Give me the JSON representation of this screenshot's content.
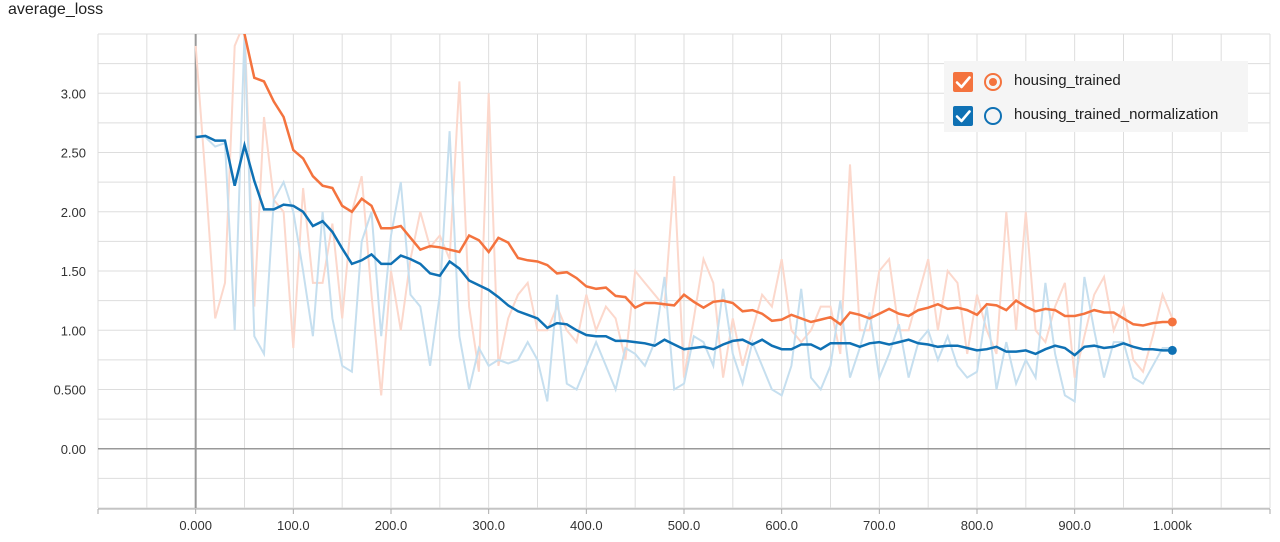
{
  "chart_data": {
    "type": "line",
    "title": "average_loss",
    "xlim": [
      -100,
      1100
    ],
    "ylim": [
      -0.5,
      3.5
    ],
    "grid": true,
    "legend_position": "top-right",
    "x_ticks": [
      {
        "value": 0,
        "label": "0.000"
      },
      {
        "value": 100,
        "label": "100.0"
      },
      {
        "value": 200,
        "label": "200.0"
      },
      {
        "value": 300,
        "label": "300.0"
      },
      {
        "value": 400,
        "label": "400.0"
      },
      {
        "value": 500,
        "label": "500.0"
      },
      {
        "value": 600,
        "label": "600.0"
      },
      {
        "value": 700,
        "label": "700.0"
      },
      {
        "value": 800,
        "label": "800.0"
      },
      {
        "value": 900,
        "label": "900.0"
      },
      {
        "value": 1000,
        "label": "1.000k"
      }
    ],
    "y_ticks": [
      {
        "value": 0,
        "label": "0.00"
      },
      {
        "value": 0.5,
        "label": "0.500"
      },
      {
        "value": 1.0,
        "label": "1.00"
      },
      {
        "value": 1.5,
        "label": "1.50"
      },
      {
        "value": 2.0,
        "label": "2.00"
      },
      {
        "value": 2.5,
        "label": "2.50"
      },
      {
        "value": 3.0,
        "label": "3.00"
      }
    ],
    "series": [
      {
        "name": "housing_trained",
        "color": "#f4733e",
        "raw_color": "#fcd8cc",
        "x": [
          0,
          10,
          20,
          30,
          40,
          50,
          60,
          70,
          80,
          90,
          100,
          110,
          120,
          130,
          140,
          150,
          160,
          170,
          180,
          190,
          200,
          210,
          220,
          230,
          240,
          250,
          260,
          270,
          280,
          290,
          300,
          310,
          320,
          330,
          340,
          350,
          360,
          370,
          380,
          390,
          400,
          410,
          420,
          430,
          440,
          450,
          460,
          470,
          480,
          490,
          500,
          510,
          520,
          530,
          540,
          550,
          560,
          570,
          580,
          590,
          600,
          610,
          620,
          630,
          640,
          650,
          660,
          670,
          680,
          690,
          700,
          710,
          720,
          730,
          740,
          750,
          760,
          770,
          780,
          790,
          800,
          810,
          820,
          830,
          840,
          850,
          860,
          870,
          880,
          890,
          900,
          910,
          920,
          930,
          940,
          950,
          960,
          970,
          980,
          990,
          1000
        ],
        "raw": [
          3.4,
          2.3,
          1.1,
          1.4,
          3.4,
          3.6,
          1.2,
          2.8,
          2.1,
          2.0,
          0.85,
          2.2,
          1.4,
          1.4,
          1.9,
          1.1,
          2.0,
          2.3,
          1.3,
          0.45,
          1.5,
          1.0,
          1.6,
          2.0,
          1.7,
          1.8,
          1.6,
          3.1,
          1.2,
          0.65,
          3.0,
          0.7,
          1.1,
          1.3,
          1.4,
          1.0,
          1.0,
          1.2,
          1.0,
          0.9,
          1.3,
          1.0,
          1.2,
          1.1,
          0.75,
          1.5,
          1.4,
          1.3,
          1.2,
          2.3,
          0.6,
          1.1,
          1.6,
          1.4,
          0.6,
          1.1,
          0.7,
          1.0,
          1.3,
          1.2,
          1.6,
          1.0,
          0.9,
          1.0,
          1.2,
          1.2,
          0.8,
          2.4,
          1.0,
          1.0,
          1.5,
          1.6,
          1.0,
          1.0,
          1.3,
          1.6,
          1.0,
          1.5,
          1.4,
          0.8,
          1.3,
          1.0,
          0.8,
          2.0,
          1.0,
          2.0,
          1.0,
          0.9,
          1.2,
          1.4,
          0.6,
          0.95,
          1.3,
          1.45,
          1.0,
          1.2,
          0.75,
          0.65,
          0.95,
          1.3,
          1.1
        ],
        "smoothed": [
          3.6,
          3.6,
          3.6,
          3.6,
          3.6,
          3.5,
          3.13,
          3.1,
          2.93,
          2.8,
          2.52,
          2.45,
          2.3,
          2.22,
          2.2,
          2.05,
          2.0,
          2.11,
          2.05,
          1.86,
          1.86,
          1.88,
          1.78,
          1.68,
          1.71,
          1.7,
          1.68,
          1.66,
          1.8,
          1.76,
          1.66,
          1.78,
          1.74,
          1.61,
          1.59,
          1.58,
          1.55,
          1.48,
          1.49,
          1.44,
          1.37,
          1.35,
          1.36,
          1.29,
          1.28,
          1.19,
          1.23,
          1.23,
          1.22,
          1.21,
          1.3,
          1.24,
          1.19,
          1.24,
          1.25,
          1.23,
          1.16,
          1.17,
          1.14,
          1.08,
          1.09,
          1.13,
          1.1,
          1.07,
          1.09,
          1.11,
          1.05,
          1.15,
          1.13,
          1.1,
          1.14,
          1.18,
          1.14,
          1.12,
          1.17,
          1.19,
          1.22,
          1.18,
          1.19,
          1.17,
          1.13,
          1.22,
          1.21,
          1.17,
          1.25,
          1.2,
          1.16,
          1.18,
          1.17,
          1.12,
          1.12,
          1.14,
          1.17,
          1.15,
          1.15,
          1.1,
          1.05,
          1.04,
          1.06,
          1.07,
          1.07
        ]
      },
      {
        "name": "housing_trained_normalization",
        "color": "#0f71b4",
        "raw_color": "#c6dfef",
        "x": [
          0,
          10,
          20,
          30,
          40,
          50,
          60,
          70,
          80,
          90,
          100,
          110,
          120,
          130,
          140,
          150,
          160,
          170,
          180,
          190,
          200,
          210,
          220,
          230,
          240,
          250,
          260,
          270,
          280,
          290,
          300,
          310,
          320,
          330,
          340,
          350,
          360,
          370,
          380,
          390,
          400,
          410,
          420,
          430,
          440,
          450,
          460,
          470,
          480,
          490,
          500,
          510,
          520,
          530,
          540,
          550,
          560,
          570,
          580,
          590,
          600,
          610,
          620,
          630,
          640,
          650,
          660,
          670,
          680,
          690,
          700,
          710,
          720,
          730,
          740,
          750,
          760,
          770,
          780,
          790,
          800,
          810,
          820,
          830,
          840,
          850,
          860,
          870,
          880,
          890,
          900,
          910,
          920,
          930,
          940,
          950,
          960,
          970,
          980,
          990,
          1000
        ],
        "raw": [
          2.63,
          2.63,
          2.55,
          2.58,
          1.0,
          3.5,
          0.95,
          0.8,
          2.1,
          2.25,
          2.0,
          1.5,
          0.95,
          2.0,
          1.1,
          0.7,
          0.65,
          1.75,
          2.0,
          0.95,
          1.8,
          2.25,
          1.3,
          1.2,
          0.7,
          1.3,
          2.68,
          0.95,
          0.5,
          0.85,
          0.7,
          0.75,
          0.72,
          0.75,
          0.9,
          0.75,
          0.4,
          1.3,
          0.55,
          0.5,
          0.7,
          0.9,
          0.7,
          0.5,
          0.85,
          0.8,
          0.7,
          0.9,
          1.45,
          0.5,
          0.55,
          0.95,
          0.9,
          0.7,
          1.35,
          0.8,
          0.55,
          0.9,
          0.7,
          0.5,
          0.45,
          0.7,
          1.35,
          0.6,
          0.5,
          0.7,
          1.25,
          0.6,
          0.85,
          1.15,
          0.6,
          0.8,
          1.05,
          0.6,
          0.9,
          1.0,
          0.75,
          0.95,
          0.7,
          0.6,
          0.65,
          1.2,
          0.5,
          0.9,
          0.55,
          0.75,
          0.6,
          1.4,
          0.8,
          0.45,
          0.4,
          1.45,
          1.0,
          0.6,
          0.9,
          0.9,
          0.6,
          0.55,
          0.7,
          0.85,
          0.85
        ],
        "smoothed": [
          2.63,
          2.64,
          2.6,
          2.6,
          2.22,
          2.56,
          2.26,
          2.02,
          2.02,
          2.06,
          2.05,
          2.0,
          1.88,
          1.92,
          1.83,
          1.69,
          1.56,
          1.59,
          1.64,
          1.56,
          1.56,
          1.63,
          1.6,
          1.56,
          1.48,
          1.46,
          1.58,
          1.52,
          1.42,
          1.38,
          1.34,
          1.28,
          1.21,
          1.16,
          1.13,
          1.1,
          1.02,
          1.06,
          1.05,
          1.0,
          0.96,
          0.95,
          0.95,
          0.91,
          0.91,
          0.9,
          0.89,
          0.87,
          0.92,
          0.88,
          0.84,
          0.85,
          0.86,
          0.84,
          0.88,
          0.91,
          0.92,
          0.88,
          0.92,
          0.87,
          0.84,
          0.84,
          0.88,
          0.88,
          0.84,
          0.89,
          0.89,
          0.89,
          0.86,
          0.89,
          0.9,
          0.88,
          0.9,
          0.92,
          0.89,
          0.88,
          0.86,
          0.87,
          0.87,
          0.85,
          0.83,
          0.84,
          0.86,
          0.82,
          0.82,
          0.83,
          0.8,
          0.84,
          0.87,
          0.85,
          0.79,
          0.86,
          0.87,
          0.85,
          0.86,
          0.89,
          0.86,
          0.84,
          0.84,
          0.83,
          0.83
        ]
      }
    ]
  }
}
